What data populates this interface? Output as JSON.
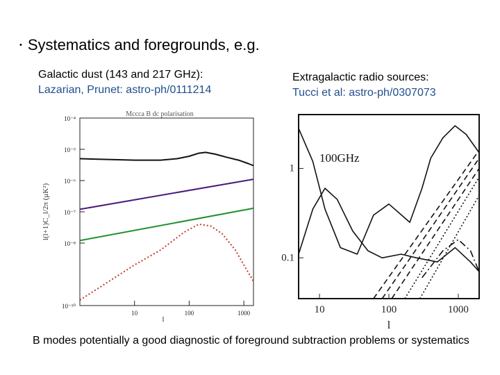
{
  "slide": {
    "bullet": "Systematics and foregrounds, e.g.",
    "summary": "B modes potentially a good diagnostic of foreground subtraction problems or systematics"
  },
  "left_panel": {
    "caption_title": "Galactic dust (143 and 217 GHz):",
    "caption_ref": "Lazarian, Prunet: astro-ph/0111214",
    "chart_data": {
      "type": "line",
      "title": "Mccca B dc polarisation",
      "xlabel": "l",
      "ylabel": "l(l+1)C_l/2π (μK²)",
      "xscale": "log",
      "yscale": "log",
      "xlim": [
        1,
        1500
      ],
      "ylim": [
        1e-10,
        0.0001
      ],
      "x_ticks": [
        "10",
        "100",
        "1000"
      ],
      "y_ticks": [
        "10⁻¹⁰",
        "10⁻⁸",
        "10⁻⁷",
        "10⁻⁶",
        "10⁻⁵",
        "10⁻⁴"
      ],
      "series": [
        {
          "color": "#111111",
          "style": "solid",
          "x": [
            1,
            10,
            30,
            60,
            100,
            150,
            200,
            300,
            500,
            800,
            1200,
            1500
          ],
          "y": [
            5e-06,
            4.5e-06,
            4.5e-06,
            5e-06,
            6e-06,
            7.5e-06,
            8e-06,
            7e-06,
            5.5e-06,
            4.5e-06,
            3.5e-06,
            3e-06
          ]
        },
        {
          "color": "#4a1a7a",
          "style": "solid",
          "x": [
            1,
            1500
          ],
          "y": [
            1.2e-07,
            1.1e-06
          ]
        },
        {
          "color": "#1f8f2f",
          "style": "solid",
          "x": [
            1,
            1500
          ],
          "y": [
            1.2e-08,
            1.3e-07
          ]
        },
        {
          "color": "#c0392b",
          "style": "dotted",
          "x": [
            1,
            10,
            30,
            80,
            150,
            250,
            400,
            700,
            1000,
            1500
          ],
          "y": [
            1.5e-10,
            2e-09,
            6e-09,
            2.2e-08,
            4e-08,
            3.5e-08,
            2e-08,
            6e-09,
            2e-09,
            6e-10
          ]
        }
      ]
    }
  },
  "right_panel": {
    "caption_title": "Extragalactic radio sources:",
    "caption_ref": "Tucci et al: astro-ph/0307073",
    "chart_data": {
      "type": "line",
      "title": "100GHz",
      "xlabel": "l",
      "xscale": "log",
      "yscale": "log",
      "xlim": [
        5,
        2000
      ],
      "ylim": [
        0.035,
        4
      ],
      "x_ticks": [
        "10",
        "100",
        "1000"
      ],
      "y_ticks": [
        "1",
        "0.1"
      ],
      "series": [
        {
          "style": "solid",
          "x": [
            5,
            8,
            12,
            20,
            35,
            60,
            100,
            200,
            300,
            400,
            600,
            900,
            1300,
            2000
          ],
          "y": [
            2.8,
            1.2,
            0.35,
            0.13,
            0.11,
            0.3,
            0.4,
            0.25,
            0.6,
            1.3,
            2.2,
            3.0,
            2.4,
            1.5
          ]
        },
        {
          "style": "solid",
          "x": [
            5,
            8,
            12,
            18,
            30,
            50,
            80,
            150,
            250,
            500,
            900,
            1500,
            2000
          ],
          "y": [
            0.11,
            0.35,
            0.6,
            0.45,
            0.2,
            0.12,
            0.1,
            0.11,
            0.1,
            0.09,
            0.13,
            0.09,
            0.07
          ]
        },
        {
          "style": "dashed",
          "x": [
            60,
            2000
          ],
          "y": [
            0.035,
            1.6
          ]
        },
        {
          "style": "dashed",
          "x": [
            80,
            2000
          ],
          "y": [
            0.035,
            1.3
          ]
        },
        {
          "style": "dashed",
          "x": [
            110,
            2000
          ],
          "y": [
            0.035,
            1.0
          ]
        },
        {
          "style": "dotted",
          "x": [
            170,
            2000
          ],
          "y": [
            0.035,
            0.8
          ]
        },
        {
          "style": "dotted",
          "x": [
            280,
            2000
          ],
          "y": [
            0.035,
            0.5
          ]
        },
        {
          "style": "dashdot",
          "x": [
            300,
            600,
            1000,
            1500,
            2000
          ],
          "y": [
            0.06,
            0.12,
            0.16,
            0.12,
            0.07
          ]
        }
      ]
    }
  }
}
